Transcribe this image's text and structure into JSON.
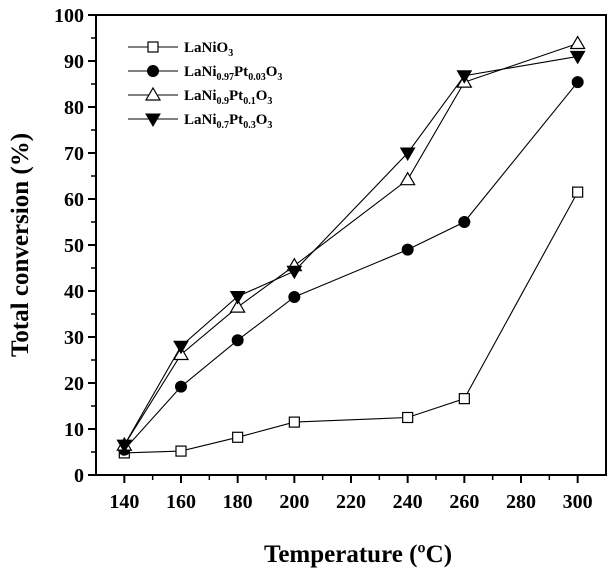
{
  "chart_data": {
    "type": "line",
    "title": "",
    "xlabel": "Temperature (ºC)",
    "ylabel": "Total conversion (%)",
    "xlim": [
      130,
      310
    ],
    "ylim": [
      0,
      100
    ],
    "xticks": [
      140,
      160,
      180,
      200,
      220,
      240,
      260,
      280,
      300
    ],
    "yticks": [
      0,
      10,
      20,
      30,
      40,
      50,
      60,
      70,
      80,
      90,
      100
    ],
    "grid": false,
    "legend_position": "top-left",
    "series": [
      {
        "name": "LaNiO3",
        "label_parts": [
          [
            "LaNiO",
            ""
          ],
          [
            "3",
            "sub"
          ]
        ],
        "marker": "square-open",
        "x": [
          140,
          160,
          180,
          200,
          240,
          260,
          300
        ],
        "y": [
          4.8,
          5.2,
          8.2,
          11.5,
          12.5,
          16.6,
          61.5
        ]
      },
      {
        "name": "LaNi0.97Pt0.03O3",
        "label_parts": [
          [
            "LaNi",
            ""
          ],
          [
            "0.97",
            "sub"
          ],
          [
            "Pt",
            ""
          ],
          [
            "0.03",
            "sub"
          ],
          [
            "O",
            ""
          ],
          [
            "3",
            "sub"
          ]
        ],
        "marker": "circle-filled",
        "x": [
          140,
          160,
          180,
          200,
          240,
          260,
          300
        ],
        "y": [
          5.5,
          19.2,
          29.3,
          38.7,
          49.0,
          55.0,
          85.4
        ]
      },
      {
        "name": "LaNi0.9Pt0.1O3",
        "label_parts": [
          [
            "LaNi",
            ""
          ],
          [
            "0.9",
            "sub"
          ],
          [
            "Pt",
            ""
          ],
          [
            "0.1",
            "sub"
          ],
          [
            "O",
            ""
          ],
          [
            "3",
            "sub"
          ]
        ],
        "marker": "triangle-up-open",
        "x": [
          140,
          160,
          180,
          200,
          240,
          260,
          300
        ],
        "y": [
          6.5,
          26.2,
          36.5,
          45.5,
          64.2,
          85.4,
          93.8
        ]
      },
      {
        "name": "LaNi0.7Pt0.3O3",
        "label_parts": [
          [
            "LaNi",
            ""
          ],
          [
            "0.7",
            "sub"
          ],
          [
            "Pt",
            ""
          ],
          [
            "0.3",
            "sub"
          ],
          [
            "O",
            ""
          ],
          [
            "3",
            "sub"
          ]
        ],
        "marker": "triangle-down-filled",
        "x": [
          140,
          160,
          180,
          200,
          240,
          260,
          300
        ],
        "y": [
          6.5,
          28.0,
          38.8,
          44.3,
          70.0,
          86.8,
          91.0
        ]
      }
    ]
  }
}
